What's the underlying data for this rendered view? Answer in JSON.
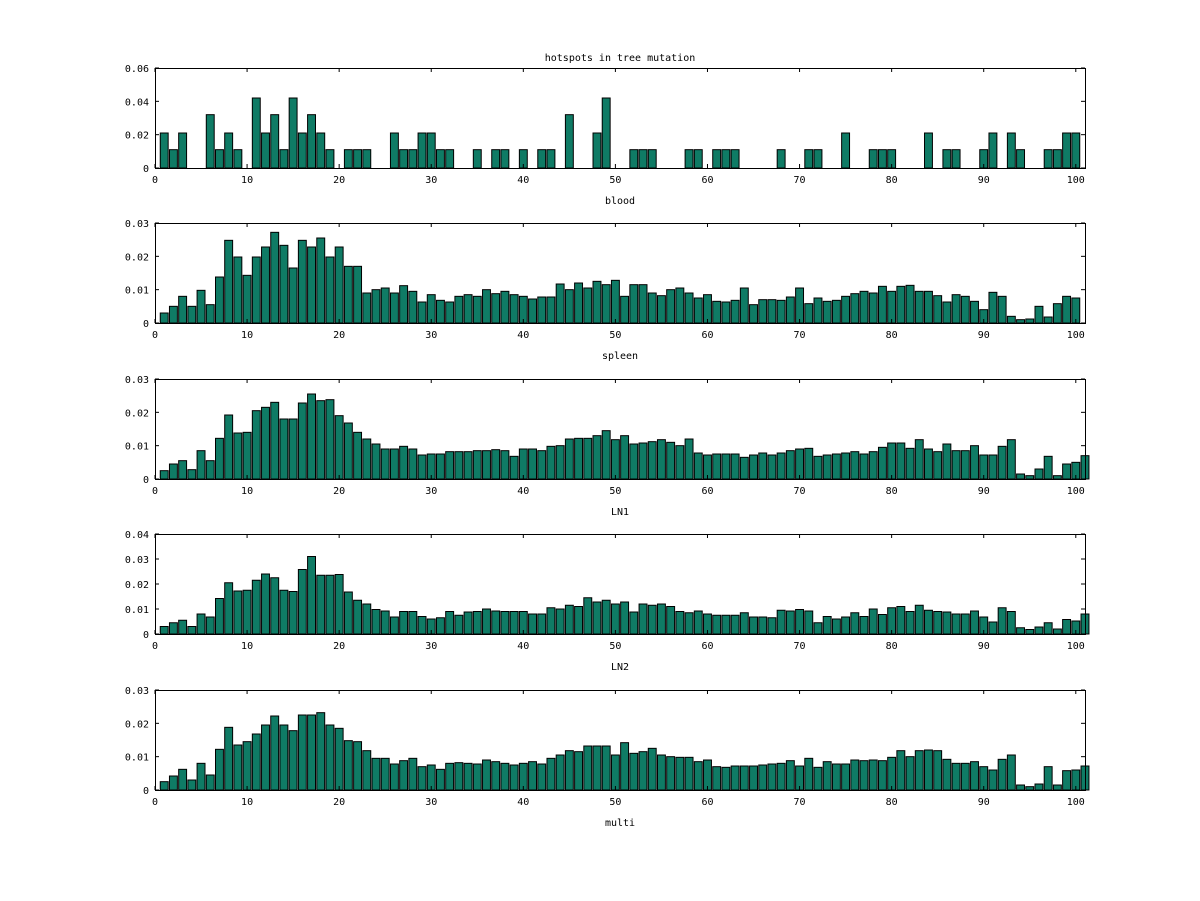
{
  "figure": {
    "bar_color": "#0f7b65",
    "edge_color": "#000000"
  },
  "chart_data": [
    {
      "type": "bar",
      "title": "hotspots in tree mutation",
      "xlabel": "blood",
      "ylabel": "",
      "xlim": [
        0,
        101
      ],
      "ylim": [
        0,
        0.06
      ],
      "xticks": [
        0,
        10,
        20,
        30,
        40,
        50,
        60,
        70,
        80,
        90,
        100
      ],
      "yticks": [
        0,
        0.02,
        0.04,
        0.06
      ],
      "ytick_labels": [
        "0",
        "0.02",
        "0.04",
        "0.06"
      ],
      "x_start": 1,
      "values": [
        0.021,
        0.011,
        0.021,
        0,
        0,
        0.032,
        0.011,
        0.021,
        0.011,
        0,
        0.042,
        0.021,
        0.032,
        0.011,
        0.042,
        0.021,
        0.032,
        0.021,
        0.011,
        0,
        0.011,
        0.011,
        0.011,
        0,
        0,
        0.021,
        0.011,
        0.011,
        0.021,
        0.021,
        0.011,
        0.011,
        0,
        0,
        0.011,
        0,
        0.011,
        0.011,
        0,
        0.011,
        0,
        0.011,
        0.011,
        0,
        0.032,
        0,
        0,
        0.021,
        0.042,
        0,
        0,
        0.011,
        0.011,
        0.011,
        0,
        0,
        0,
        0.011,
        0.011,
        0,
        0.011,
        0.011,
        0.011,
        0,
        0,
        0,
        0,
        0.011,
        0,
        0,
        0.011,
        0.011,
        0,
        0,
        0.021,
        0,
        0,
        0.011,
        0.011,
        0.011,
        0,
        0,
        0,
        0.021,
        0,
        0.011,
        0.011,
        0,
        0,
        0.011,
        0.021,
        0,
        0.021,
        0.011,
        0,
        0,
        0.011,
        0.011,
        0.021,
        0.021,
        0
      ]
    },
    {
      "type": "bar",
      "title": "",
      "xlabel": "spleen",
      "ylabel": "",
      "xlim": [
        0,
        101
      ],
      "ylim": [
        0,
        0.03
      ],
      "xticks": [
        0,
        10,
        20,
        30,
        40,
        50,
        60,
        70,
        80,
        90,
        100
      ],
      "yticks": [
        0,
        0.01,
        0.02,
        0.03
      ],
      "ytick_labels": [
        "0",
        "0.01",
        "0.02",
        "0.03"
      ],
      "x_start": 1,
      "values": [
        0.003,
        0.005,
        0.008,
        0.005,
        0.0098,
        0.0055,
        0.0138,
        0.0248,
        0.0198,
        0.0143,
        0.0198,
        0.0228,
        0.0272,
        0.0233,
        0.0165,
        0.0248,
        0.0228,
        0.0255,
        0.0198,
        0.0228,
        0.017,
        0.017,
        0.009,
        0.01,
        0.0105,
        0.009,
        0.0112,
        0.0095,
        0.0063,
        0.0085,
        0.0068,
        0.0063,
        0.008,
        0.0085,
        0.008,
        0.01,
        0.0088,
        0.0095,
        0.0085,
        0.008,
        0.0072,
        0.0078,
        0.0078,
        0.0117,
        0.01,
        0.012,
        0.0105,
        0.0125,
        0.0115,
        0.0128,
        0.008,
        0.0115,
        0.0115,
        0.009,
        0.0082,
        0.01,
        0.0105,
        0.009,
        0.0075,
        0.0085,
        0.0065,
        0.0063,
        0.0068,
        0.0105,
        0.0055,
        0.007,
        0.007,
        0.0068,
        0.0078,
        0.0105,
        0.0058,
        0.0075,
        0.0065,
        0.0068,
        0.008,
        0.0088,
        0.0095,
        0.009,
        0.011,
        0.0095,
        0.011,
        0.0113,
        0.0095,
        0.0095,
        0.0082,
        0.0063,
        0.0085,
        0.008,
        0.0065,
        0.004,
        0.0092,
        0.008,
        0.002,
        0.001,
        0.0012,
        0.005,
        0.0018,
        0.0058,
        0.008,
        0.0075,
        0
      ]
    },
    {
      "type": "bar",
      "title": "",
      "xlabel": "LN1",
      "ylabel": "",
      "xlim": [
        0,
        101
      ],
      "ylim": [
        0,
        0.03
      ],
      "xticks": [
        0,
        10,
        20,
        30,
        40,
        50,
        60,
        70,
        80,
        90,
        100
      ],
      "yticks": [
        0,
        0.01,
        0.02,
        0.03
      ],
      "ytick_labels": [
        "0",
        "0.01",
        "0.02",
        "0.03"
      ],
      "x_start": 1,
      "values": [
        0.0025,
        0.0045,
        0.0055,
        0.0028,
        0.0085,
        0.0055,
        0.0122,
        0.0192,
        0.0138,
        0.014,
        0.0205,
        0.0215,
        0.023,
        0.018,
        0.018,
        0.0228,
        0.0255,
        0.0235,
        0.0238,
        0.019,
        0.0168,
        0.014,
        0.012,
        0.0105,
        0.009,
        0.009,
        0.0098,
        0.009,
        0.0072,
        0.0075,
        0.0075,
        0.0082,
        0.0082,
        0.0082,
        0.0085,
        0.0085,
        0.0088,
        0.0085,
        0.0068,
        0.009,
        0.009,
        0.0085,
        0.0098,
        0.01,
        0.012,
        0.0122,
        0.0122,
        0.013,
        0.0145,
        0.0118,
        0.013,
        0.0105,
        0.0108,
        0.0112,
        0.0118,
        0.011,
        0.01,
        0.012,
        0.0078,
        0.0072,
        0.0075,
        0.0075,
        0.0075,
        0.0065,
        0.0072,
        0.0078,
        0.0072,
        0.0078,
        0.0085,
        0.009,
        0.0092,
        0.0068,
        0.0072,
        0.0075,
        0.0078,
        0.0082,
        0.0075,
        0.0082,
        0.0095,
        0.0108,
        0.0108,
        0.0092,
        0.0118,
        0.009,
        0.0082,
        0.0105,
        0.0085,
        0.0085,
        0.01,
        0.0072,
        0.0072,
        0.0098,
        0.0118,
        0.0015,
        0.001,
        0.003,
        0.0068,
        0.001,
        0.0045,
        0.005,
        0.007,
        0
      ]
    },
    {
      "type": "bar",
      "title": "",
      "xlabel": "LN2",
      "ylabel": "",
      "xlim": [
        0,
        101
      ],
      "ylim": [
        0,
        0.04
      ],
      "xticks": [
        0,
        10,
        20,
        30,
        40,
        50,
        60,
        70,
        80,
        90,
        100
      ],
      "yticks": [
        0,
        0.01,
        0.02,
        0.03,
        0.04
      ],
      "ytick_labels": [
        "0",
        "0.01",
        "0.02",
        "0.03",
        "0.04"
      ],
      "x_start": 1,
      "values": [
        0.003,
        0.0045,
        0.0055,
        0.003,
        0.008,
        0.0068,
        0.0142,
        0.0205,
        0.0172,
        0.0175,
        0.0215,
        0.024,
        0.0225,
        0.0175,
        0.017,
        0.0258,
        0.031,
        0.0235,
        0.0235,
        0.0238,
        0.0168,
        0.0135,
        0.012,
        0.0098,
        0.0092,
        0.0068,
        0.009,
        0.009,
        0.007,
        0.006,
        0.0065,
        0.009,
        0.0075,
        0.0088,
        0.009,
        0.01,
        0.0092,
        0.009,
        0.009,
        0.009,
        0.008,
        0.008,
        0.0105,
        0.01,
        0.0115,
        0.011,
        0.0145,
        0.0128,
        0.0135,
        0.012,
        0.0128,
        0.0088,
        0.012,
        0.0115,
        0.012,
        0.011,
        0.009,
        0.0085,
        0.0092,
        0.008,
        0.0075,
        0.0075,
        0.0075,
        0.0085,
        0.0068,
        0.0068,
        0.0065,
        0.0095,
        0.0092,
        0.0098,
        0.0092,
        0.0045,
        0.007,
        0.006,
        0.0068,
        0.0085,
        0.007,
        0.01,
        0.0078,
        0.0105,
        0.011,
        0.009,
        0.0115,
        0.0095,
        0.009,
        0.0088,
        0.008,
        0.008,
        0.0092,
        0.0068,
        0.0048,
        0.0105,
        0.009,
        0.0025,
        0.0018,
        0.0028,
        0.0045,
        0.002,
        0.0058,
        0.0052,
        0.008,
        0
      ]
    },
    {
      "type": "bar",
      "title": "",
      "xlabel": "multi",
      "ylabel": "",
      "xlim": [
        0,
        101
      ],
      "ylim": [
        0,
        0.03
      ],
      "xticks": [
        0,
        10,
        20,
        30,
        40,
        50,
        60,
        70,
        80,
        90,
        100
      ],
      "yticks": [
        0,
        0.01,
        0.02,
        0.03
      ],
      "ytick_labels": [
        "0",
        "0.01",
        "0.02",
        "0.03"
      ],
      "x_start": 1,
      "values": [
        0.0025,
        0.0042,
        0.0062,
        0.003,
        0.008,
        0.0045,
        0.0122,
        0.0188,
        0.0135,
        0.0145,
        0.0168,
        0.0195,
        0.0222,
        0.0195,
        0.0178,
        0.0225,
        0.0225,
        0.0232,
        0.0195,
        0.0185,
        0.0148,
        0.0145,
        0.0118,
        0.0095,
        0.0095,
        0.0078,
        0.0088,
        0.0095,
        0.007,
        0.0075,
        0.0062,
        0.008,
        0.0082,
        0.008,
        0.0078,
        0.009,
        0.0085,
        0.008,
        0.0075,
        0.008,
        0.0085,
        0.0078,
        0.0095,
        0.0105,
        0.0118,
        0.0115,
        0.0132,
        0.0132,
        0.0132,
        0.0105,
        0.0142,
        0.011,
        0.0115,
        0.0125,
        0.0105,
        0.01,
        0.0098,
        0.0098,
        0.0085,
        0.009,
        0.007,
        0.0068,
        0.0072,
        0.0072,
        0.0072,
        0.0075,
        0.0078,
        0.008,
        0.0088,
        0.0072,
        0.0095,
        0.0068,
        0.0085,
        0.0078,
        0.0078,
        0.009,
        0.0088,
        0.009,
        0.0088,
        0.0098,
        0.0118,
        0.01,
        0.0118,
        0.012,
        0.0118,
        0.0092,
        0.008,
        0.008,
        0.0085,
        0.007,
        0.006,
        0.0092,
        0.0105,
        0.0015,
        0.001,
        0.0018,
        0.007,
        0.0015,
        0.0058,
        0.006,
        0.0072,
        0
      ]
    }
  ]
}
